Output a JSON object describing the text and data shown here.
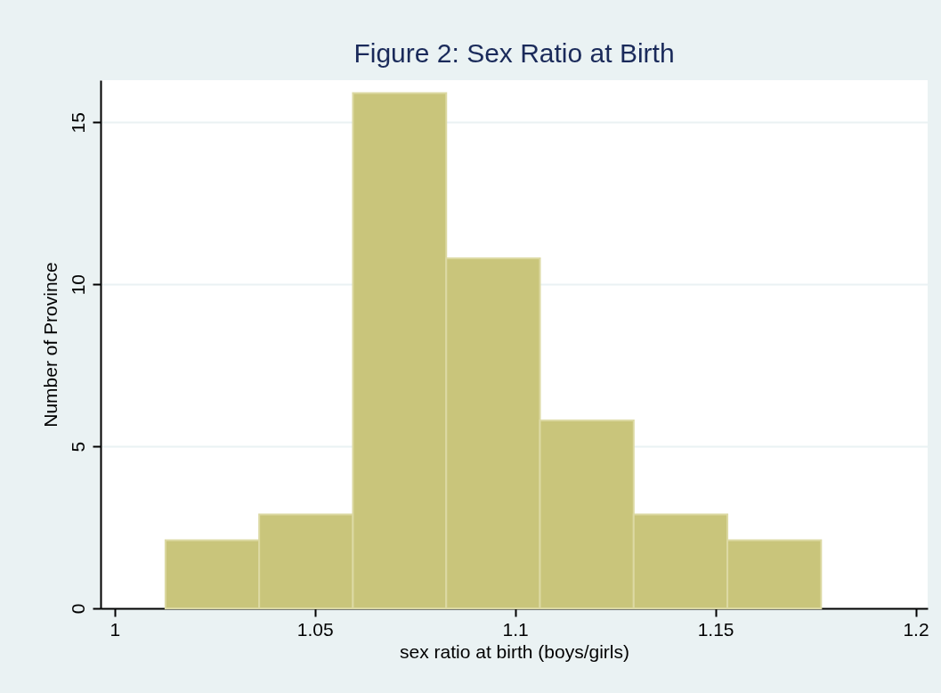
{
  "chart_data": {
    "type": "histogram",
    "title": "Figure 2: Sex Ratio at Birth",
    "xlabel": "sex ratio at birth (boys/girls)",
    "ylabel": "Number of Province",
    "bins": [
      1.0127,
      1.0361,
      1.0595,
      1.0828,
      1.1062,
      1.1296,
      1.153,
      1.1764
    ],
    "values": [
      2.1,
      2.9,
      15.9,
      10.8,
      5.8,
      2.9,
      2.1
    ],
    "color": "#c9c57b",
    "xlim": [
      0.9965,
      1.203
    ],
    "xticks": [
      1,
      1.05,
      1.1,
      1.15,
      1.2
    ],
    "ylim": [
      0,
      16.3
    ],
    "yticks": [
      0,
      5,
      10,
      15
    ],
    "grid": "y"
  }
}
